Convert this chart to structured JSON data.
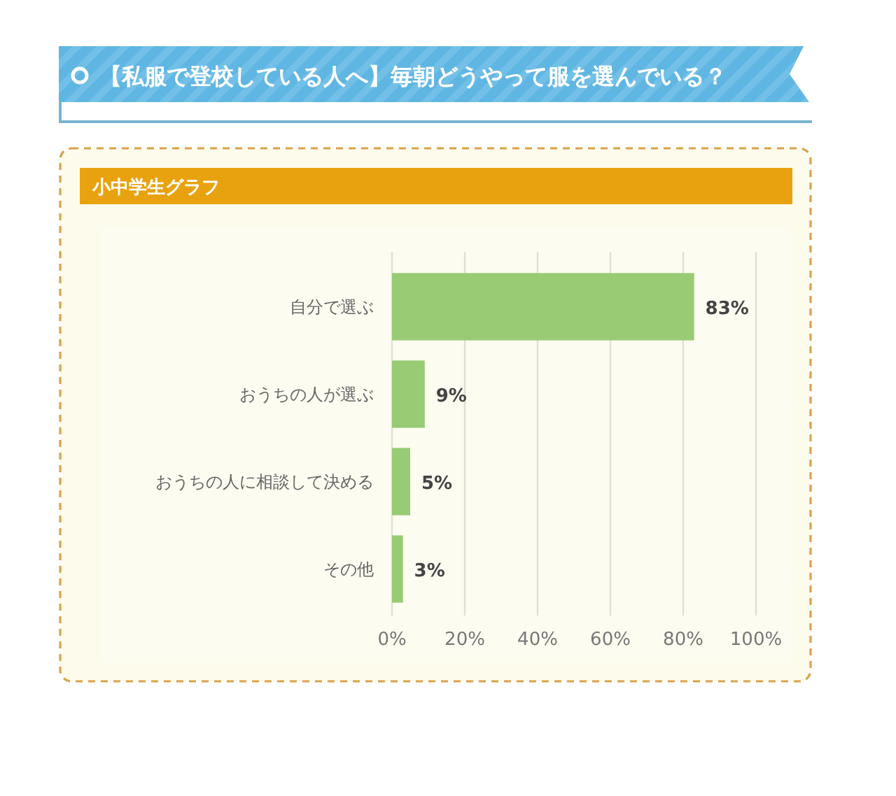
{
  "chart_data": {
    "type": "bar",
    "orientation": "horizontal",
    "title": "【私服で登校している人へ】毎朝どうやって服を選んでいる？",
    "subtitle": "小中学生グラフ",
    "categories": [
      "自分で選ぶ",
      "おうちの人が選ぶ",
      "おうちの人に相談して決める",
      "その他"
    ],
    "values": [
      83,
      9,
      5,
      3
    ],
    "value_labels": [
      "83%",
      "9%",
      "5%",
      "3%"
    ],
    "color": "#98cb74",
    "xlim": [
      0,
      100
    ],
    "xticks": [
      {
        "value": 0,
        "label": "0%"
      },
      {
        "value": 20,
        "label": "20%"
      },
      {
        "value": 40,
        "label": "40%"
      },
      {
        "value": 60,
        "label": "60%"
      },
      {
        "value": 80,
        "label": "80%"
      },
      {
        "value": 100,
        "label": "100%"
      }
    ],
    "grid": "x"
  }
}
